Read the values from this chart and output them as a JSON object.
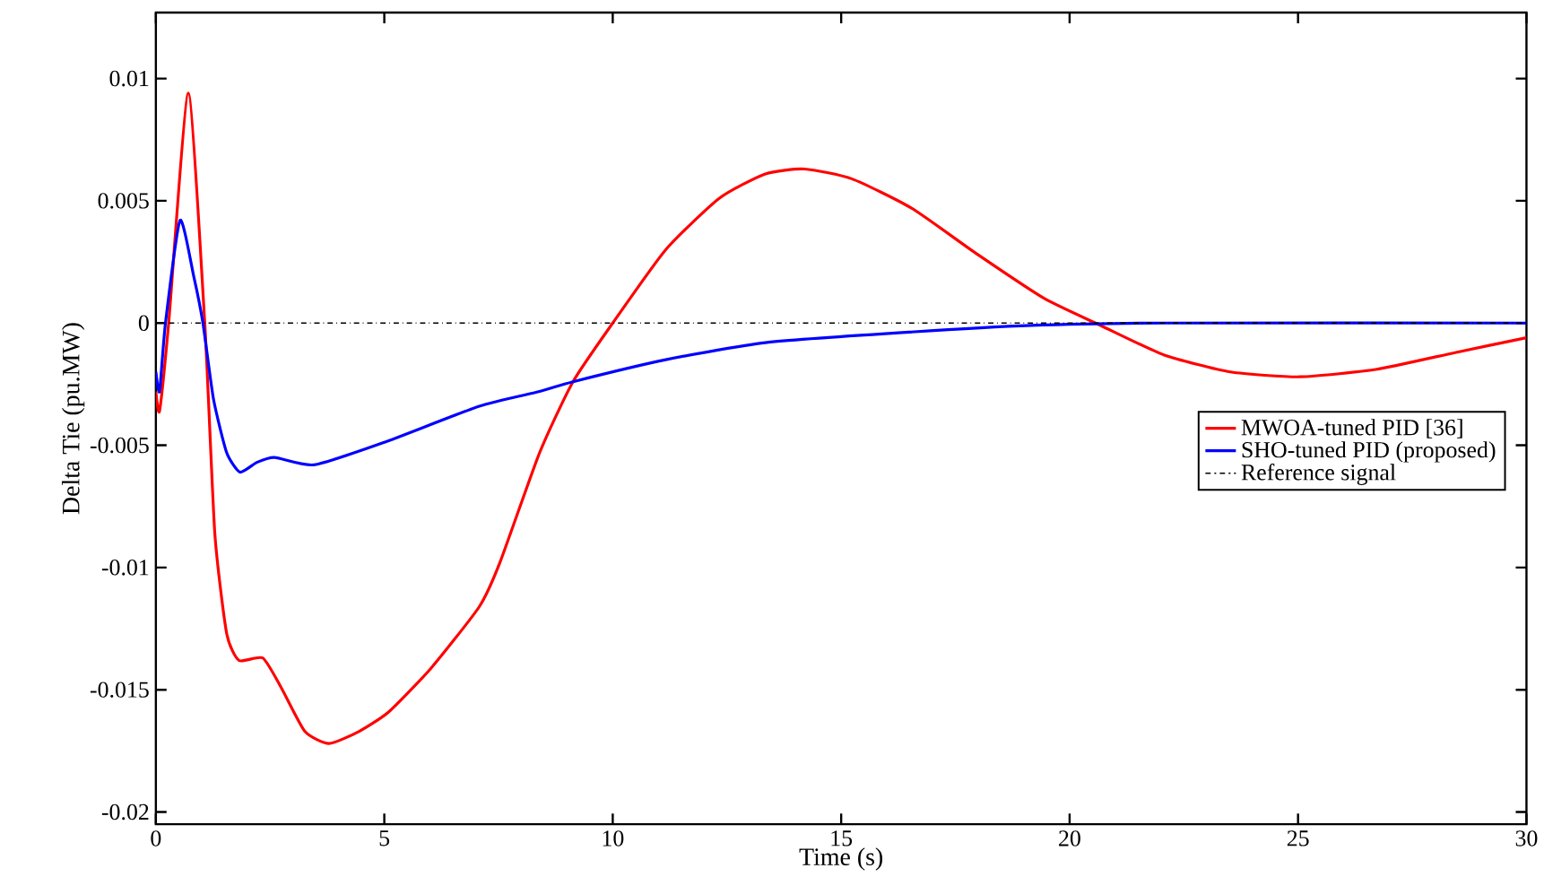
{
  "chart_data": {
    "type": "line",
    "xlabel": "Time (s)",
    "ylabel": "Delta Tie (pu.MW)",
    "xlim": [
      0,
      30
    ],
    "ylim": [
      -0.0205,
      0.0127
    ],
    "xticks": [
      0,
      5,
      10,
      15,
      20,
      25,
      30
    ],
    "yticks": [
      -0.02,
      -0.015,
      -0.01,
      -0.005,
      0,
      0.005,
      0.01
    ],
    "legend": "right",
    "grid": false,
    "series": [
      {
        "name": "MWOA-tuned PID [36]",
        "color": "#ff0000",
        "line_style": "solid",
        "x": [
          0,
          0.08,
          0.28,
          0.71,
          1.07,
          1.29,
          1.55,
          1.82,
          2.34,
          2.74,
          3.26,
          3.79,
          4.45,
          5.1,
          6.03,
          7.08,
          7.53,
          8.4,
          9.13,
          10,
          11.16,
          12.33,
          13.34,
          14.2,
          15.23,
          16.54,
          17.99,
          19.45,
          20.68,
          22.06,
          23.52,
          25.04,
          26.7,
          28.46,
          30
        ],
        "values": [
          -0.0028,
          -0.0036,
          0,
          0.0094,
          0,
          -0.0086,
          -0.0127,
          -0.0138,
          -0.0137,
          -0.0149,
          -0.0167,
          -0.0172,
          -0.0167,
          -0.0159,
          -0.0141,
          -0.0116,
          -0.0098,
          -0.0053,
          -0.0024,
          0,
          0.003,
          0.0051,
          0.0061,
          0.0063,
          0.0059,
          0.0047,
          0.0028,
          0.001,
          -0.0001,
          -0.0013,
          -0.002,
          -0.0022,
          -0.0019,
          -0.0012,
          -0.0006
        ]
      },
      {
        "name": "SHO-tuned PID (proposed)",
        "color": "#0000ff",
        "line_style": "solid",
        "x": [
          0,
          0.08,
          0.21,
          0.53,
          0.83,
          1.03,
          1.26,
          1.55,
          1.84,
          2.21,
          2.6,
          3.46,
          4.97,
          7.08,
          8.4,
          9.13,
          11.16,
          13.34,
          16.25,
          19.16,
          22.06,
          30
        ],
        "values": [
          -0.002,
          -0.0028,
          0,
          0.0042,
          0.0019,
          0,
          -0.0031,
          -0.0053,
          -0.0061,
          -0.0057,
          -0.0055,
          -0.0058,
          -0.0049,
          -0.0034,
          -0.0028,
          -0.0024,
          -0.0015,
          -0.0008,
          -0.0004,
          -0.0001,
          0,
          0
        ]
      },
      {
        "name": "Reference signal",
        "color": "#000000",
        "line_style": "dashdot",
        "x": [
          0,
          30
        ],
        "values": [
          0,
          0
        ]
      }
    ]
  }
}
